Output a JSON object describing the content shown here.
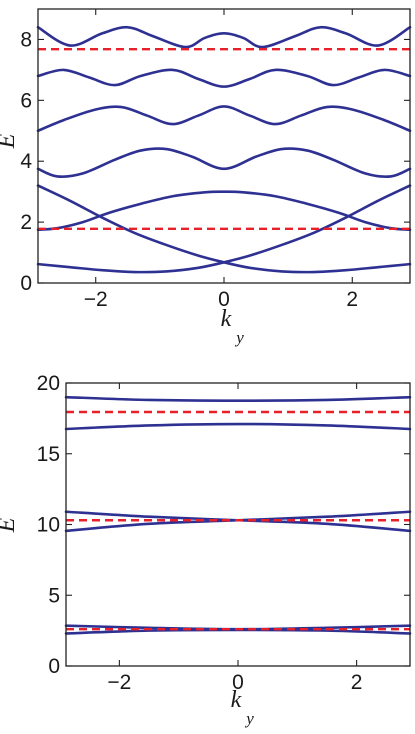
{
  "chart_data": [
    {
      "type": "line",
      "title": "",
      "xlabel": "k",
      "xlabel_subscript": "y",
      "ylabel": "E",
      "xlim": [
        -2.9,
        2.9
      ],
      "ylim": [
        0,
        9
      ],
      "xticks": [
        -2,
        0,
        2
      ],
      "xtick_labels": [
        "−2",
        "0",
        "2"
      ],
      "yticks": [
        0,
        2,
        4,
        6,
        8
      ],
      "ytick_labels": [
        "0",
        "2",
        "4",
        "6",
        "8"
      ],
      "grid": false,
      "legend": "none",
      "band_color": "#2e3192",
      "reference_color": "#e8202a",
      "series": [
        {
          "x": [
            -2.9,
            -2.4,
            -1.9,
            -1.4,
            -0.9,
            -0.4,
            0,
            0.4,
            0.9,
            1.4,
            1.9,
            2.4,
            2.9
          ],
          "y": [
            0.62,
            0.52,
            0.42,
            0.36,
            0.38,
            0.5,
            0.68,
            0.9,
            1.25,
            1.65,
            2.15,
            2.7,
            3.2
          ]
        },
        {
          "x": [
            -2.9,
            -2.4,
            -1.9,
            -1.4,
            -0.9,
            -0.4,
            0,
            0.4,
            0.9,
            1.4,
            1.9,
            2.4,
            2.9
          ],
          "y": [
            3.2,
            2.7,
            2.15,
            1.65,
            1.25,
            0.9,
            0.68,
            0.5,
            0.38,
            0.36,
            0.42,
            0.52,
            0.62
          ]
        },
        {
          "x": [
            -2.9,
            -2.6,
            -2.2,
            -1.8,
            -1.3,
            -0.8,
            -0.3,
            0,
            0.3,
            0.8,
            1.3,
            1.8,
            2.2,
            2.6,
            2.9
          ],
          "y": [
            1.75,
            1.8,
            2.0,
            2.3,
            2.6,
            2.85,
            2.98,
            3.0,
            2.98,
            2.85,
            2.6,
            2.3,
            2.0,
            1.8,
            1.75
          ]
        },
        {
          "x": [
            -2.9,
            -2.6,
            -2.2,
            -1.7,
            -1.3,
            -0.9,
            -0.5,
            0,
            0.5,
            0.9,
            1.3,
            1.7,
            2.2,
            2.6,
            2.9
          ],
          "y": [
            3.75,
            3.5,
            3.6,
            4.05,
            4.35,
            4.4,
            4.15,
            3.75,
            4.15,
            4.4,
            4.35,
            4.05,
            3.6,
            3.5,
            3.75
          ]
        },
        {
          "x": [
            -2.9,
            -2.5,
            -2.0,
            -1.6,
            -1.2,
            -0.8,
            -0.4,
            0,
            0.4,
            0.8,
            1.2,
            1.6,
            2.0,
            2.5,
            2.9
          ],
          "y": [
            5.0,
            5.35,
            5.7,
            5.78,
            5.5,
            5.22,
            5.5,
            5.8,
            5.5,
            5.22,
            5.5,
            5.78,
            5.7,
            5.35,
            5.0
          ]
        },
        {
          "x": [
            -2.9,
            -2.5,
            -2.1,
            -1.7,
            -1.3,
            -0.8,
            -0.4,
            0,
            0.4,
            0.8,
            1.3,
            1.7,
            2.1,
            2.5,
            2.9
          ],
          "y": [
            6.8,
            7.0,
            6.75,
            6.5,
            6.8,
            7.0,
            6.7,
            6.45,
            6.7,
            7.0,
            6.8,
            6.5,
            6.75,
            7.0,
            6.8
          ]
        },
        {
          "x": [
            -2.9,
            -2.4,
            -1.9,
            -1.5,
            -1.1,
            -0.6,
            -0.3,
            0,
            0.3,
            0.6,
            1.1,
            1.5,
            1.9,
            2.4,
            2.9
          ],
          "y": [
            8.4,
            7.8,
            8.2,
            8.4,
            8.1,
            7.75,
            8.05,
            8.2,
            8.05,
            7.75,
            8.1,
            8.4,
            8.2,
            7.8,
            8.4
          ]
        }
      ],
      "reference_lines": [
        1.78,
        7.68
      ]
    },
    {
      "type": "line",
      "title": "",
      "xlabel": "k",
      "xlabel_subscript": "y",
      "ylabel": "E",
      "xlim": [
        -2.9,
        2.9
      ],
      "ylim": [
        0,
        20
      ],
      "xticks": [
        -2,
        0,
        2
      ],
      "xtick_labels": [
        "−2",
        "0",
        "2"
      ],
      "yticks": [
        0,
        5,
        10,
        15,
        20
      ],
      "ytick_labels": [
        "0",
        "5",
        "10",
        "15",
        "20"
      ],
      "grid": false,
      "legend": "none",
      "band_color": "#2e3192",
      "reference_color": "#e8202a",
      "series": [
        {
          "x": [
            -2.9,
            -1.5,
            0,
            1.5,
            2.9
          ],
          "y": [
            19.0,
            18.8,
            18.75,
            18.8,
            19.0
          ]
        },
        {
          "x": [
            -2.9,
            -1.5,
            0,
            1.5,
            2.9
          ],
          "y": [
            16.75,
            17.0,
            17.1,
            17.0,
            16.75
          ]
        },
        {
          "x": [
            -2.9,
            -1.5,
            0,
            1.5,
            2.9
          ],
          "y": [
            10.9,
            10.55,
            10.3,
            10.05,
            9.55
          ]
        },
        {
          "x": [
            -2.9,
            -1.5,
            0,
            1.5,
            2.9
          ],
          "y": [
            9.55,
            10.05,
            10.3,
            10.55,
            10.9
          ]
        },
        {
          "x": [
            -2.9,
            -1.5,
            0,
            1.5,
            2.9
          ],
          "y": [
            2.85,
            2.7,
            2.6,
            2.7,
            2.85
          ]
        },
        {
          "x": [
            -2.9,
            -1.5,
            0,
            1.5,
            2.9
          ],
          "y": [
            2.3,
            2.5,
            2.55,
            2.5,
            2.3
          ]
        }
      ],
      "reference_lines": [
        2.6,
        10.3,
        17.95
      ]
    }
  ]
}
